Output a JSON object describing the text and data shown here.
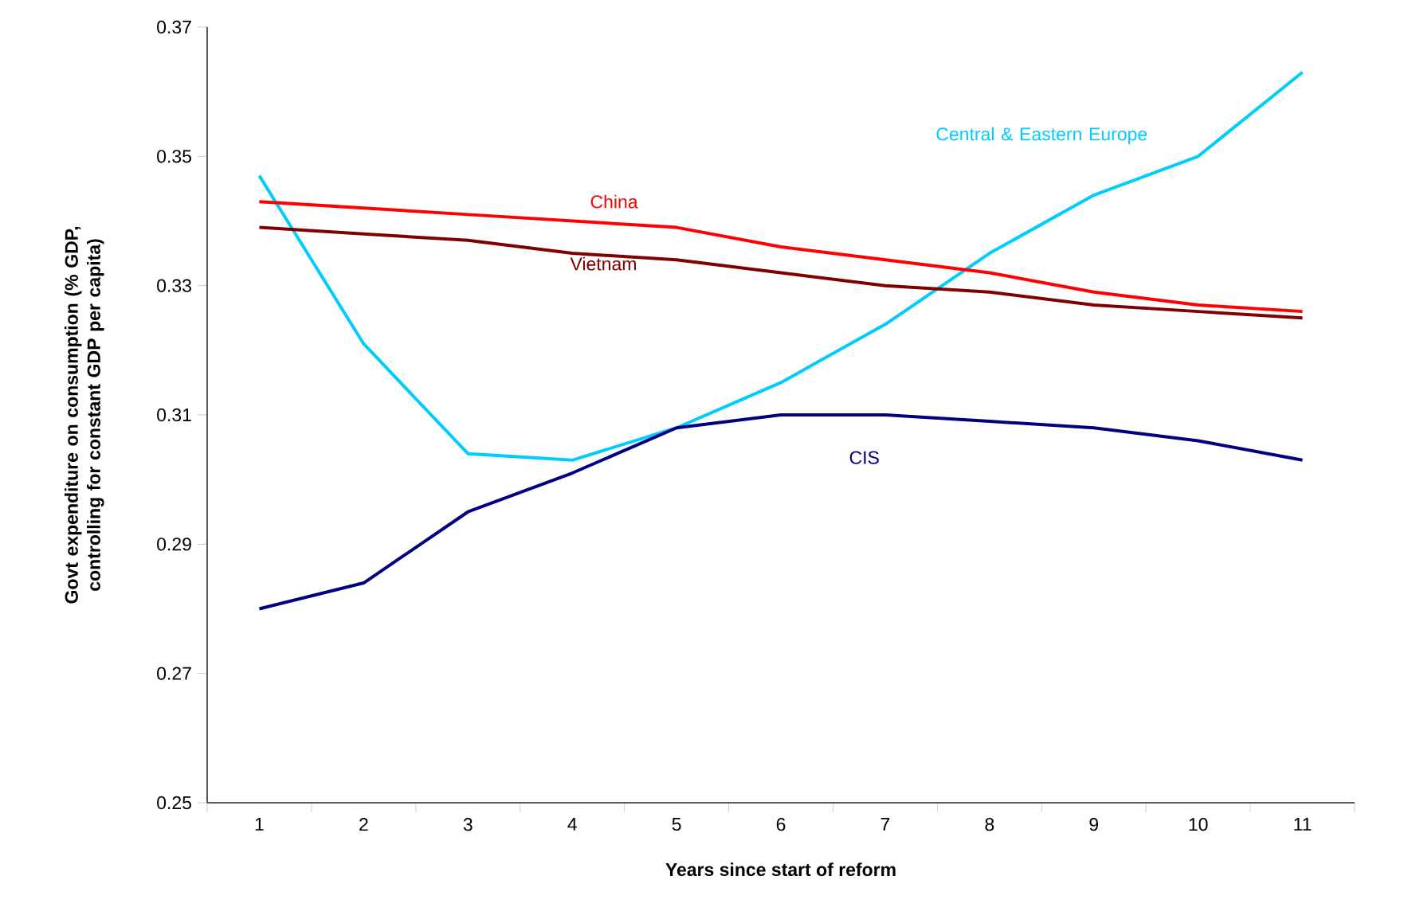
{
  "chart_data": {
    "type": "line",
    "xlabel": "Years since start of reform",
    "ylabel": "Govt expenditure on consumption (% GDP, controlling for constant GDP per capita)",
    "categories": [
      "1",
      "2",
      "3",
      "4",
      "5",
      "6",
      "7",
      "8",
      "9",
      "10",
      "11"
    ],
    "ylim": [
      0.25,
      0.37
    ],
    "yticks": [
      0.25,
      0.27,
      0.29,
      0.31,
      0.33,
      0.35,
      0.37
    ],
    "grid": false,
    "legend": false,
    "marker": "none",
    "line_style": "solid",
    "series": [
      {
        "name": "Central & Eastern Europe",
        "color": "#00ccff",
        "values": [
          0.347,
          0.321,
          0.304,
          0.303,
          0.308,
          0.315,
          0.324,
          0.335,
          0.344,
          0.35,
          0.363
        ]
      },
      {
        "name": "China",
        "color": "#ff0000",
        "values": [
          0.343,
          0.342,
          0.341,
          0.34,
          0.339,
          0.336,
          0.334,
          0.332,
          0.329,
          0.327,
          0.326
        ]
      },
      {
        "name": "Vietnam",
        "color": "#800000",
        "values": [
          0.339,
          0.338,
          0.337,
          0.335,
          0.334,
          0.332,
          0.33,
          0.329,
          0.327,
          0.326,
          0.325
        ]
      },
      {
        "name": "CIS",
        "color": "#000080",
        "values": [
          0.28,
          0.284,
          0.295,
          0.301,
          0.308,
          0.31,
          0.31,
          0.309,
          0.308,
          0.306,
          0.303
        ]
      }
    ]
  }
}
